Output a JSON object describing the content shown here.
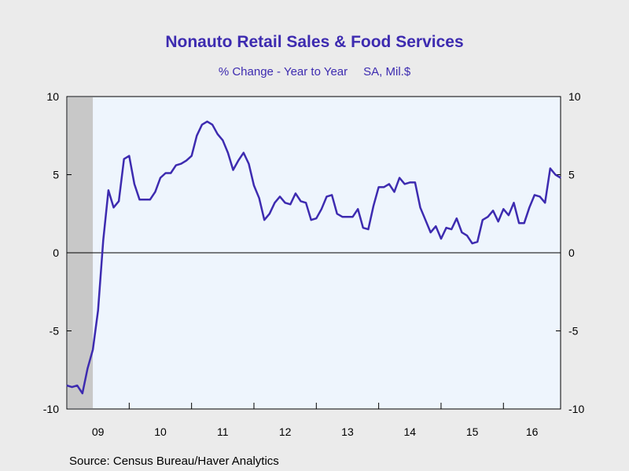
{
  "chart_data": {
    "type": "line",
    "title": "Nonauto Retail Sales & Food Services",
    "subtitle": "% Change - Year to Year",
    "units": "SA, Mil.$",
    "source": "Source:  Census Bureau/Haver Analytics",
    "ylim": [
      -10,
      10
    ],
    "y_ticks": [
      -10,
      -5,
      0,
      5,
      10
    ],
    "y_tick_labels": [
      "-10",
      "-5",
      "0",
      "5",
      "10"
    ],
    "x_start": "2009-01",
    "x_end": "2016-12",
    "x_tick_labels": [
      "09",
      "10",
      "11",
      "12",
      "13",
      "14",
      "15",
      "16"
    ],
    "recession_shading": [
      "2009-01",
      "2009-06"
    ],
    "reference_line": 0,
    "colors": {
      "line": "#3d2bb0",
      "plot_background": "#eef5fd",
      "shading": "#c8c8c8",
      "page_background": "#ebebeb",
      "title": "#3d2bb0"
    },
    "series": [
      {
        "x": [
          "2009-01",
          "2009-02",
          "2009-03",
          "2009-04",
          "2009-05",
          "2009-06",
          "2009-07",
          "2009-08",
          "2009-09",
          "2009-10",
          "2009-11",
          "2009-12",
          "2010-01",
          "2010-02",
          "2010-03",
          "2010-04",
          "2010-05",
          "2010-06",
          "2010-07",
          "2010-08",
          "2010-09",
          "2010-10",
          "2010-11",
          "2010-12",
          "2011-01",
          "2011-02",
          "2011-03",
          "2011-04",
          "2011-05",
          "2011-06",
          "2011-07",
          "2011-08",
          "2011-09",
          "2011-10",
          "2011-11",
          "2011-12",
          "2012-01",
          "2012-02",
          "2012-03",
          "2012-04",
          "2012-05",
          "2012-06",
          "2012-07",
          "2012-08",
          "2012-09",
          "2012-10",
          "2012-11",
          "2012-12",
          "2013-01",
          "2013-02",
          "2013-03",
          "2013-04",
          "2013-05",
          "2013-06",
          "2013-07",
          "2013-08",
          "2013-09",
          "2013-10",
          "2013-11",
          "2013-12",
          "2014-01",
          "2014-02",
          "2014-03",
          "2014-04",
          "2014-05",
          "2014-06",
          "2014-07",
          "2014-08",
          "2014-09",
          "2014-10",
          "2014-11",
          "2014-12",
          "2015-01",
          "2015-02",
          "2015-03",
          "2015-04",
          "2015-05",
          "2015-06",
          "2015-07",
          "2015-08",
          "2015-09",
          "2015-10",
          "2015-11",
          "2015-12",
          "2016-01",
          "2016-02",
          "2016-03",
          "2016-04",
          "2016-05",
          "2016-06",
          "2016-07",
          "2016-08",
          "2016-09",
          "2016-10",
          "2016-11",
          "2016-12"
        ],
        "values": [
          -8.5,
          -8.6,
          -8.5,
          -9.0,
          -7.4,
          -6.2,
          -3.7,
          0.8,
          4.0,
          2.9,
          3.3,
          6.0,
          6.2,
          4.4,
          3.4,
          3.4,
          3.4,
          3.9,
          4.8,
          5.1,
          5.1,
          5.6,
          5.7,
          5.9,
          6.2,
          7.5,
          8.2,
          8.4,
          8.2,
          7.6,
          7.2,
          6.4,
          5.3,
          5.9,
          6.4,
          5.7,
          4.3,
          3.5,
          2.1,
          2.5,
          3.2,
          3.6,
          3.2,
          3.1,
          3.8,
          3.3,
          3.2,
          2.1,
          2.2,
          2.8,
          3.6,
          3.7,
          2.5,
          2.3,
          2.3,
          2.3,
          2.8,
          1.6,
          1.5,
          3.0,
          4.2,
          4.2,
          4.4,
          3.9,
          4.8,
          4.4,
          4.5,
          4.5,
          2.9,
          2.1,
          1.3,
          1.7,
          0.9,
          1.6,
          1.5,
          2.2,
          1.3,
          1.1,
          0.6,
          0.7,
          2.1,
          2.3,
          2.7,
          2.0,
          2.8,
          2.4,
          3.2,
          1.9,
          1.9,
          2.9,
          3.7,
          3.6,
          3.2,
          5.4,
          5.0,
          4.8
        ]
      }
    ]
  }
}
